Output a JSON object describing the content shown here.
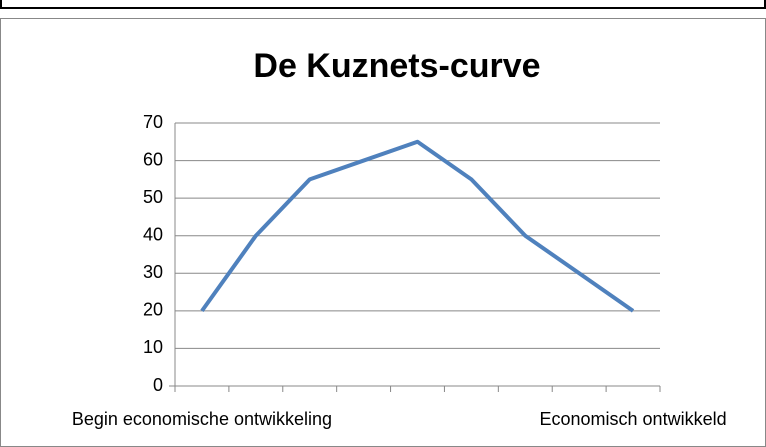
{
  "chart_data": {
    "type": "line",
    "title": "De Kuznets-curve",
    "categories": [
      "Begin economische ontwikkeling",
      null,
      null,
      null,
      null,
      null,
      null,
      null,
      "Economisch ontwikkeld"
    ],
    "series": [
      {
        "name": "Kuznets-curve",
        "color": "#4f81bd",
        "values": [
          20,
          40,
          55,
          60,
          65,
          55,
          40,
          30,
          20
        ]
      }
    ],
    "ylim": [
      0,
      70
    ],
    "yticks": [
      0,
      10,
      20,
      30,
      40,
      50,
      60,
      70
    ],
    "grid": true
  }
}
